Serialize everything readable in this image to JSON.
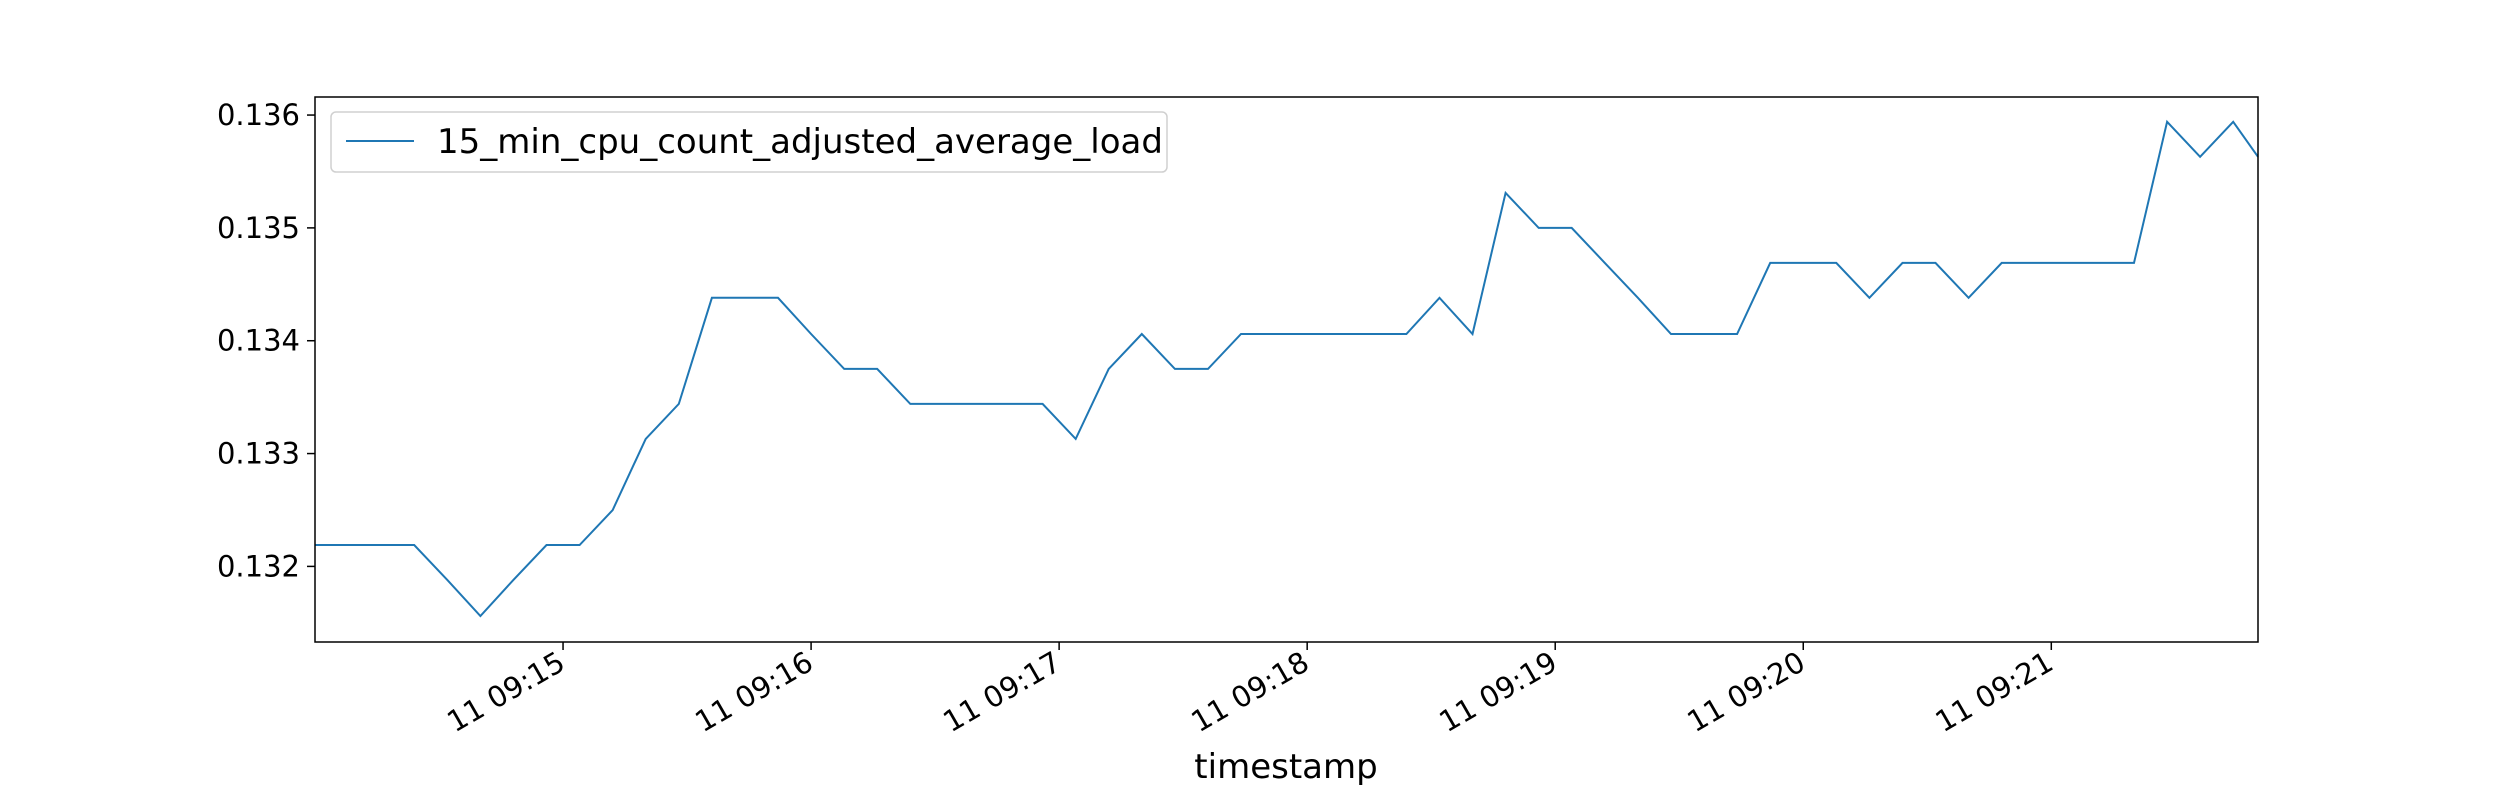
{
  "chart_data": {
    "type": "line",
    "xlabel": "timestamp",
    "ylabel": "",
    "grid": false,
    "legend_position": "top-left",
    "series_color": "#1f77b4",
    "x_tick_labels": [
      "11 09:15",
      "11 09:16",
      "11 09:17",
      "11 09:18",
      "11 09:19",
      "11 09:20",
      "11 09:21"
    ],
    "y_tick_labels": [
      "0.132",
      "0.133",
      "0.134",
      "0.135",
      "0.136"
    ],
    "y_ticks": [
      0.132,
      0.133,
      0.134,
      0.135,
      0.136
    ],
    "ylim": [
      0.13133,
      0.13616
    ],
    "x_range_min": [
      "09:14:00",
      "09:21:50"
    ],
    "series": [
      {
        "name": "15_min_cpu_count_adjusted_average_load",
        "x": [
          "09:14:00",
          "09:14:08",
          "09:14:16",
          "09:14:24",
          "09:14:32",
          "09:14:40",
          "09:14:48",
          "09:14:56",
          "09:15:04",
          "09:15:12",
          "09:15:20",
          "09:15:28",
          "09:15:36",
          "09:15:44",
          "09:15:52",
          "09:16:00",
          "09:16:08",
          "09:16:16",
          "09:16:24",
          "09:16:32",
          "09:16:40",
          "09:16:48",
          "09:16:56",
          "09:17:04",
          "09:17:12",
          "09:17:20",
          "09:17:28",
          "09:17:36",
          "09:17:44",
          "09:17:52",
          "09:18:00",
          "09:18:08",
          "09:18:16",
          "09:18:24",
          "09:18:32",
          "09:18:40",
          "09:18:48",
          "09:18:56",
          "09:19:04",
          "09:19:12",
          "09:19:20",
          "09:19:28",
          "09:19:36",
          "09:19:44",
          "09:19:52",
          "09:20:00",
          "09:20:08",
          "09:20:16",
          "09:20:24",
          "09:20:32",
          "09:20:40",
          "09:20:48",
          "09:20:56",
          "09:21:04",
          "09:21:12",
          "09:21:20",
          "09:21:28",
          "09:21:36",
          "09:21:44",
          "09:21:50"
        ],
        "y": [
          0.13219,
          0.13219,
          0.13219,
          0.13219,
          0.13188,
          0.13156,
          0.13188,
          0.13219,
          0.13219,
          0.1325,
          0.13313,
          0.13344,
          0.13438,
          0.13438,
          0.13438,
          0.13406,
          0.13375,
          0.13375,
          0.13344,
          0.13344,
          0.13344,
          0.13344,
          0.13344,
          0.13313,
          0.13375,
          0.13406,
          0.13375,
          0.13375,
          0.13406,
          0.13406,
          0.13406,
          0.13406,
          0.13406,
          0.13406,
          0.13438,
          0.13406,
          0.13531,
          0.135,
          0.135,
          0.13469,
          0.13438,
          0.13406,
          0.13406,
          0.13406,
          0.13469,
          0.13469,
          0.13469,
          0.13438,
          0.13469,
          0.13469,
          0.13438,
          0.13469,
          0.13469,
          0.13469,
          0.13469,
          0.13469,
          0.13594,
          0.13563,
          0.13594,
          0.13563
        ]
      }
    ]
  }
}
